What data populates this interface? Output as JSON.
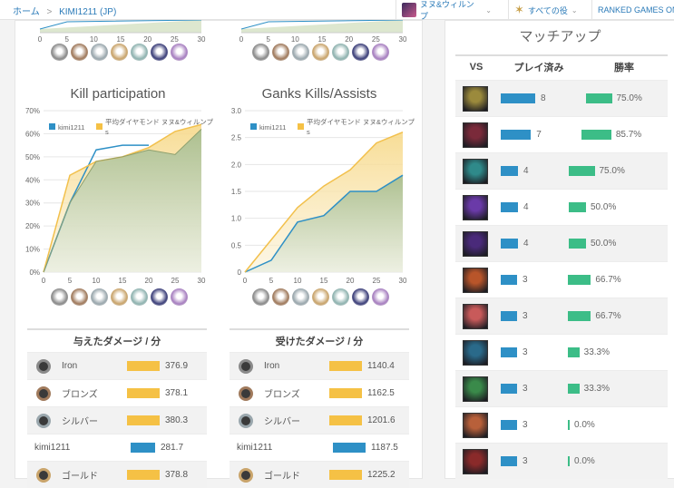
{
  "breadcrumb": {
    "home": "ホーム",
    "separator": ">",
    "summoner": "KIMI1211 (JP)"
  },
  "nav": {
    "champion": "ヌヌ&ウィルンプ",
    "role": "すべての役",
    "ranked": "RANKED GAMES ONL"
  },
  "ranks": [
    "Iron",
    "Bronze",
    "Silver",
    "Gold",
    "Platinum",
    "Diamond",
    "Master"
  ],
  "rank_colors": [
    "#8a8a8a",
    "#a07a5c",
    "#9aa7ad",
    "#c9a46b",
    "#8fb3b0",
    "#3c3f7a",
    "#a77fc0"
  ],
  "charts": {
    "kill": {
      "title": "Kill participation",
      "legend_player": "kimi1211",
      "legend_avg": "平均ダイヤモンド ヌヌ&ウィルンプ",
      "legend_avg_wrap": "s",
      "y_ticks": [
        "70%",
        "60%",
        "50%",
        "40%",
        "30%",
        "20%",
        "10%",
        "0%"
      ],
      "x_ticks": [
        "0",
        "5",
        "10",
        "15",
        "20",
        "25",
        "30"
      ]
    },
    "ganks": {
      "title": "Ganks Kills/Assists",
      "legend_player": "kimi1211",
      "legend_avg": "平均ダイヤモンド ヌヌ&ウィルンプ",
      "legend_avg_wrap": "s",
      "y_ticks": [
        "3.0",
        "2.5",
        "2.0",
        "1.5",
        "1.0",
        "0.5",
        "0"
      ],
      "x_ticks": [
        "0",
        "5",
        "10",
        "15",
        "20",
        "25",
        "30"
      ]
    },
    "top_partial": {
      "x_ticks": [
        "0",
        "5",
        "10",
        "15",
        "20",
        "25",
        "30"
      ]
    }
  },
  "chart_data": [
    {
      "type": "area",
      "title": "Kill participation",
      "x": [
        0,
        5,
        10,
        15,
        20,
        25,
        30
      ],
      "ylim": [
        0,
        70
      ],
      "series": [
        {
          "name": "kimi1211",
          "values": [
            0,
            30,
            53,
            55,
            55,
            null,
            null
          ]
        },
        {
          "name": "平均ダイヤモンド ヌヌ&ウィルンプs",
          "values": [
            0,
            42,
            48,
            50,
            54,
            61,
            64
          ]
        }
      ],
      "series_secondary_line": {
        "x": [
          0,
          5,
          10,
          15,
          20,
          25,
          30
        ],
        "values": [
          0,
          30,
          48,
          50,
          53,
          51,
          62
        ]
      }
    },
    {
      "type": "area",
      "title": "Ganks Kills/Assists",
      "x": [
        0,
        5,
        10,
        15,
        20,
        25,
        30
      ],
      "ylim": [
        0,
        3.0
      ],
      "series": [
        {
          "name": "kimi1211",
          "values": [
            0,
            0.22,
            0.93,
            1.05,
            1.5,
            1.5,
            1.8
          ]
        },
        {
          "name": "平均ダイヤモンド ヌヌ&ウィルンプs",
          "values": [
            0,
            0.6,
            1.2,
            1.6,
            1.9,
            2.4,
            2.6
          ]
        }
      ]
    }
  ],
  "dealt": {
    "title": "与えたダメージ / 分",
    "rows": [
      {
        "name": "Iron",
        "value": "376.9",
        "pct": 0.8,
        "emblem": true,
        "player": false
      },
      {
        "name": "ブロンズ",
        "value": "378.1",
        "pct": 0.8,
        "emblem": true,
        "player": false
      },
      {
        "name": "シルバー",
        "value": "380.3",
        "pct": 0.8,
        "emblem": true,
        "player": false
      },
      {
        "name": "kimi1211",
        "value": "281.7",
        "pct": 0.6,
        "emblem": false,
        "player": true
      },
      {
        "name": "ゴールド",
        "value": "378.8",
        "pct": 0.8,
        "emblem": true,
        "player": false
      }
    ]
  },
  "taken": {
    "title": "受けたダメージ / 分",
    "rows": [
      {
        "name": "Iron",
        "value": "1140.4",
        "pct": 0.8,
        "emblem": true,
        "player": false
      },
      {
        "name": "ブロンズ",
        "value": "1162.5",
        "pct": 0.8,
        "emblem": true,
        "player": false
      },
      {
        "name": "シルバー",
        "value": "1201.6",
        "pct": 0.8,
        "emblem": true,
        "player": false
      },
      {
        "name": "kimi1211",
        "value": "1187.5",
        "pct": 0.8,
        "emblem": false,
        "player": true
      },
      {
        "name": "ゴールド",
        "value": "1225.2",
        "pct": 0.8,
        "emblem": true,
        "player": false
      }
    ]
  },
  "matchups": {
    "title": "マッチアップ",
    "col_vs": "VS",
    "col_played": "プレイ済み",
    "col_winrate": "勝率",
    "rows": [
      {
        "played": "8",
        "played_frac": 1.0,
        "winrate": "75.0%",
        "win_frac": 0.75,
        "color": "#9b8a3c"
      },
      {
        "played": "7",
        "played_frac": 0.875,
        "winrate": "85.7%",
        "win_frac": 0.857,
        "color": "#7a2a3a"
      },
      {
        "played": "4",
        "played_frac": 0.5,
        "winrate": "75.0%",
        "win_frac": 0.75,
        "color": "#2f8a8a"
      },
      {
        "played": "4",
        "played_frac": 0.5,
        "winrate": "50.0%",
        "win_frac": 0.5,
        "color": "#6a3aa8"
      },
      {
        "played": "4",
        "played_frac": 0.5,
        "winrate": "50.0%",
        "win_frac": 0.5,
        "color": "#4a2a7a"
      },
      {
        "played": "3",
        "played_frac": 0.375,
        "winrate": "66.7%",
        "win_frac": 0.667,
        "color": "#b8552a"
      },
      {
        "played": "3",
        "played_frac": 0.375,
        "winrate": "66.7%",
        "win_frac": 0.667,
        "color": "#c85a5a"
      },
      {
        "played": "3",
        "played_frac": 0.375,
        "winrate": "33.3%",
        "win_frac": 0.333,
        "color": "#2a6a8a"
      },
      {
        "played": "3",
        "played_frac": 0.375,
        "winrate": "33.3%",
        "win_frac": 0.333,
        "color": "#3a8a4a"
      },
      {
        "played": "3",
        "played_frac": 0.375,
        "winrate": "0.0%",
        "win_frac": 0.0,
        "color": "#b8603a"
      },
      {
        "played": "3",
        "played_frac": 0.375,
        "winrate": "0.0%",
        "win_frac": 0.0,
        "color": "#8a2a2a"
      }
    ]
  }
}
